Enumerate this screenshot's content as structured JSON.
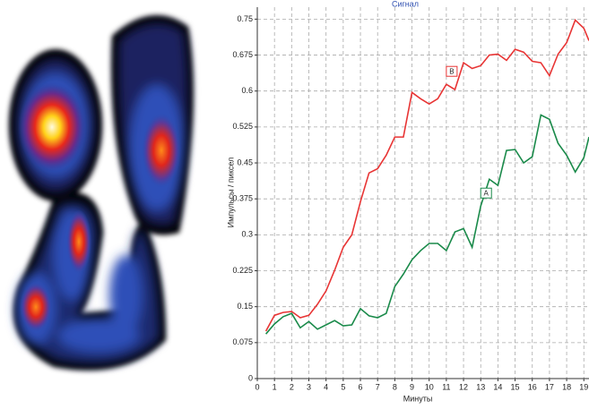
{
  "chart_data": {
    "type": "line",
    "title": "Сигнал",
    "x_label": "Минуты",
    "y_label": "Импульсы / пиксел",
    "x": [
      0.5,
      1,
      1.5,
      2,
      2.5,
      3,
      3.5,
      4,
      4.5,
      5,
      5.5,
      6,
      6.5,
      7,
      7.5,
      8,
      8.5,
      9,
      9.5,
      10,
      10.5,
      11,
      11.5,
      12,
      12.5,
      13,
      13.5,
      14,
      14.5,
      15,
      15.5,
      16,
      16.5,
      17,
      17.5,
      18,
      18.5,
      19,
      19.3
    ],
    "series": [
      {
        "name": "B",
        "color": "#e83535",
        "values": [
          0.099,
          0.132,
          0.138,
          0.14,
          0.127,
          0.132,
          0.155,
          0.183,
          0.226,
          0.274,
          0.3,
          0.369,
          0.429,
          0.438,
          0.466,
          0.504,
          0.504,
          0.597,
          0.584,
          0.573,
          0.584,
          0.614,
          0.603,
          0.659,
          0.647,
          0.653,
          0.675,
          0.677,
          0.664,
          0.687,
          0.681,
          0.662,
          0.659,
          0.632,
          0.677,
          0.701,
          0.748,
          0.731,
          0.705
        ]
      },
      {
        "name": "A",
        "color": "#1a8a4a",
        "values": [
          0.093,
          0.114,
          0.129,
          0.136,
          0.106,
          0.119,
          0.103,
          0.112,
          0.121,
          0.11,
          0.112,
          0.146,
          0.131,
          0.127,
          0.136,
          0.192,
          0.218,
          0.248,
          0.267,
          0.282,
          0.282,
          0.267,
          0.306,
          0.313,
          0.274,
          0.36,
          0.416,
          0.403,
          0.476,
          0.478,
          0.45,
          0.463,
          0.55,
          0.541,
          0.491,
          0.466,
          0.431,
          0.461,
          0.504
        ]
      }
    ],
    "xlim": [
      0,
      19.3
    ],
    "ylim": [
      0,
      0.775
    ],
    "xticks": [
      0,
      1,
      2,
      3,
      4,
      5,
      6,
      7,
      8,
      9,
      10,
      11,
      12,
      13,
      14,
      15,
      16,
      17,
      18,
      19
    ],
    "yticks": [
      0,
      0.075,
      0.15,
      0.225,
      0.3,
      0.375,
      0.45,
      0.525,
      0.6,
      0.675,
      0.75
    ],
    "grid": true
  }
}
